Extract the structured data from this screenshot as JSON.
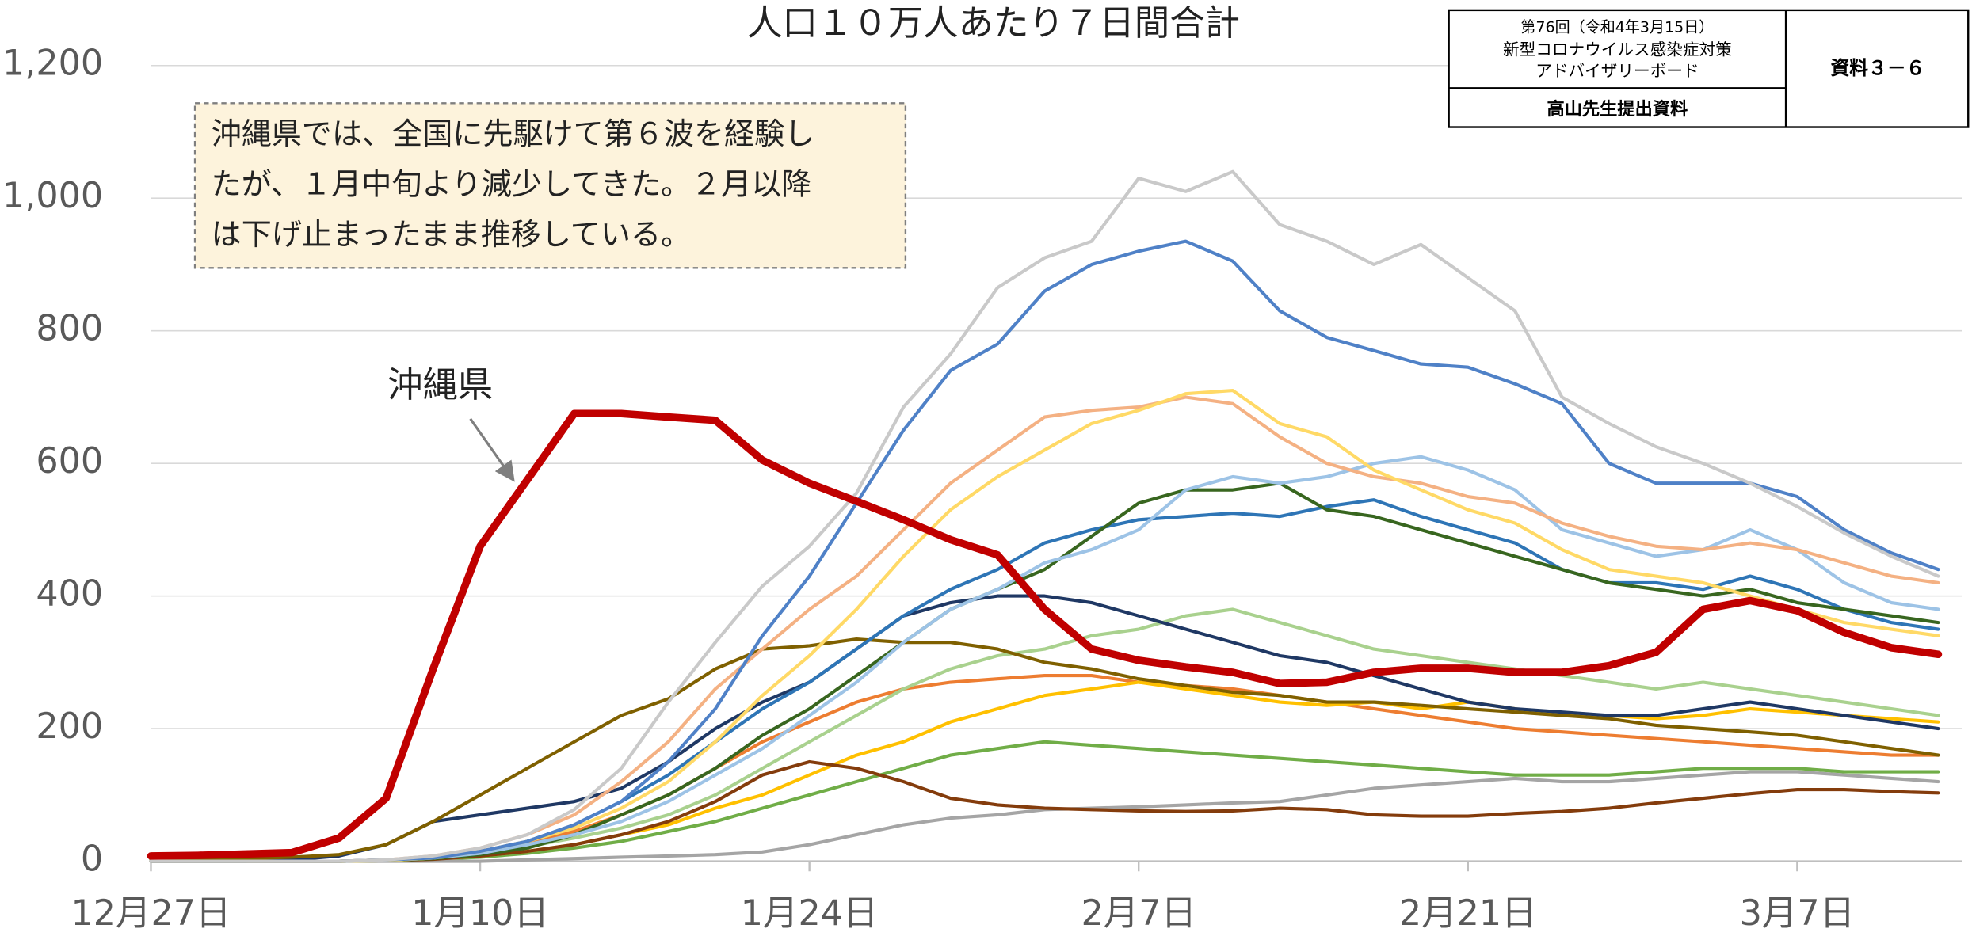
{
  "chart_data": {
    "type": "line",
    "title": "人口１０万人あたり７日間合計",
    "annotation": [
      "沖縄県では、全国に先駆けて第６波を経験し",
      "たが、１月中旬より減少してきた。２月以降",
      "は下げ止まったまま推移している。"
    ],
    "info_box": {
      "meeting": [
        "第76回（令和4年3月15日）",
        "新型コロナウイルス感染症対策",
        "アドバイザリーボード"
      ],
      "document": "資料３－６",
      "presenter": "高山先生提出資料"
    },
    "categories": [
      "12月27日",
      null,
      null,
      null,
      null,
      null,
      null,
      "1月10日",
      null,
      null,
      null,
      null,
      null,
      null,
      "1月24日",
      null,
      null,
      null,
      null,
      null,
      null,
      "2月7日",
      null,
      null,
      null,
      null,
      null,
      null,
      "2月21日",
      null,
      null,
      null,
      null,
      null,
      null,
      "3月7日",
      null,
      null,
      null
    ],
    "ylim": [
      0,
      1200
    ],
    "yticks": [
      0,
      200,
      400,
      600,
      800,
      {
        "value": 1000,
        "label": "1,000"
      },
      {
        "value": 1200,
        "label": "1,200"
      }
    ],
    "grid": true,
    "series": [
      {
        "name": "沖縄県",
        "color": "#c00000",
        "values": [
          8,
          9,
          11,
          13,
          35,
          95,
          290,
          475,
          575,
          675,
          675,
          670,
          665,
          605,
          570,
          543,
          515,
          485,
          462,
          380,
          320,
          303,
          293,
          285,
          268,
          270,
          285,
          291,
          291,
          285,
          285,
          295,
          315,
          380,
          393,
          378,
          345,
          322,
          312
        ]
      },
      {
        "color": "#c9c9c9",
        "values": [
          0,
          0,
          0,
          0,
          0,
          2,
          8,
          20,
          40,
          78,
          140,
          240,
          330,
          415,
          475,
          555,
          685,
          765,
          865,
          910,
          935,
          1030,
          1010,
          1040,
          960,
          935,
          900,
          930,
          880,
          830,
          700,
          660,
          625,
          600,
          570,
          535,
          495,
          460,
          430
        ]
      },
      {
        "color": "#4f81c7",
        "values": [
          0,
          0,
          0,
          0,
          0,
          2,
          5,
          15,
          30,
          55,
          90,
          150,
          230,
          340,
          430,
          540,
          650,
          740,
          780,
          860,
          900,
          920,
          935,
          905,
          830,
          790,
          770,
          750,
          745,
          720,
          690,
          600,
          570,
          570,
          570,
          550,
          500,
          465,
          440
        ]
      },
      {
        "color": "#ffd966",
        "values": [
          0,
          0,
          0,
          0,
          0,
          1,
          5,
          15,
          30,
          50,
          80,
          120,
          180,
          250,
          310,
          380,
          460,
          530,
          580,
          620,
          660,
          680,
          705,
          710,
          660,
          640,
          590,
          560,
          530,
          510,
          470,
          440,
          430,
          420,
          400,
          380,
          360,
          350,
          340
        ]
      },
      {
        "color": "#f4b183",
        "values": [
          0,
          0,
          0,
          0,
          0,
          2,
          8,
          20,
          40,
          70,
          120,
          180,
          260,
          320,
          380,
          430,
          500,
          570,
          620,
          670,
          680,
          685,
          700,
          690,
          640,
          600,
          580,
          570,
          550,
          540,
          510,
          490,
          475,
          470,
          480,
          470,
          450,
          430,
          420
        ]
      },
      {
        "color": "#9dc3e6",
        "values": [
          0,
          0,
          0,
          0,
          0,
          1,
          5,
          12,
          25,
          40,
          60,
          90,
          130,
          170,
          220,
          270,
          330,
          380,
          410,
          450,
          470,
          500,
          560,
          580,
          570,
          580,
          600,
          610,
          590,
          560,
          500,
          480,
          460,
          470,
          500,
          470,
          420,
          390,
          380
        ]
      },
      {
        "color": "#38661f",
        "values": [
          0,
          0,
          0,
          0,
          0,
          1,
          4,
          10,
          20,
          40,
          70,
          100,
          140,
          190,
          230,
          280,
          330,
          380,
          410,
          440,
          490,
          540,
          560,
          560,
          570,
          530,
          520,
          500,
          480,
          460,
          440,
          420,
          410,
          400,
          410,
          390,
          380,
          370,
          360
        ]
      },
      {
        "color": "#2e75b6",
        "values": [
          0,
          0,
          0,
          0,
          0,
          2,
          6,
          15,
          30,
          55,
          90,
          130,
          180,
          230,
          270,
          320,
          370,
          410,
          440,
          480,
          500,
          515,
          520,
          525,
          520,
          535,
          545,
          520,
          500,
          480,
          440,
          420,
          420,
          410,
          430,
          410,
          380,
          360,
          350
        ]
      },
      {
        "color": "#7f6000",
        "values": [
          2,
          3,
          4,
          6,
          10,
          25,
          60,
          100,
          140,
          180,
          220,
          245,
          290,
          320,
          325,
          335,
          330,
          330,
          320,
          300,
          290,
          275,
          265,
          255,
          250,
          240,
          240,
          235,
          230,
          225,
          220,
          215,
          205,
          200,
          195,
          190,
          180,
          170,
          160
        ]
      },
      {
        "color": "#1f3864",
        "values": [
          0,
          0,
          0,
          2,
          8,
          25,
          60,
          70,
          80,
          90,
          110,
          150,
          200,
          240,
          270,
          320,
          370,
          390,
          400,
          400,
          390,
          370,
          350,
          330,
          310,
          300,
          280,
          260,
          240,
          230,
          225,
          220,
          220,
          230,
          240,
          230,
          220,
          210,
          200
        ]
      },
      {
        "color": "#843c0c",
        "values": [
          0,
          0,
          0,
          0,
          0,
          1,
          3,
          8,
          15,
          25,
          40,
          60,
          90,
          130,
          150,
          140,
          120,
          95,
          85,
          80,
          78,
          76,
          75,
          76,
          80,
          78,
          70,
          68,
          68,
          72,
          75,
          80,
          88,
          95,
          102,
          108,
          108,
          105,
          103
        ]
      },
      {
        "color": "#a5a5a5",
        "values": [
          0,
          0,
          0,
          0,
          0,
          0,
          0,
          0,
          2,
          4,
          6,
          8,
          10,
          14,
          25,
          40,
          55,
          65,
          70,
          78,
          80,
          82,
          85,
          88,
          90,
          100,
          110,
          115,
          120,
          125,
          120,
          120,
          125,
          130,
          135,
          135,
          130,
          125,
          120
        ]
      },
      {
        "color": "#a9d18e",
        "values": [
          0,
          0,
          0,
          0,
          0,
          2,
          5,
          12,
          22,
          35,
          50,
          70,
          100,
          140,
          180,
          220,
          260,
          290,
          310,
          320,
          340,
          350,
          370,
          380,
          360,
          340,
          320,
          310,
          300,
          290,
          280,
          270,
          260,
          270,
          260,
          250,
          240,
          230,
          220
        ]
      },
      {
        "color": "#ffc000",
        "values": [
          0,
          0,
          0,
          0,
          0,
          1,
          3,
          8,
          15,
          25,
          40,
          55,
          80,
          100,
          130,
          160,
          180,
          210,
          230,
          250,
          260,
          270,
          260,
          250,
          240,
          235,
          240,
          230,
          240,
          230,
          220,
          220,
          215,
          220,
          230,
          225,
          220,
          215,
          210
        ]
      },
      {
        "color": "#ed7d31",
        "values": [
          0,
          0,
          0,
          0,
          0,
          2,
          6,
          15,
          28,
          45,
          70,
          100,
          140,
          180,
          210,
          240,
          260,
          270,
          275,
          280,
          280,
          270,
          265,
          260,
          250,
          240,
          230,
          220,
          210,
          200,
          195,
          190,
          185,
          180,
          175,
          170,
          165,
          160,
          160
        ]
      },
      {
        "color": "#70ad47",
        "values": [
          0,
          0,
          0,
          0,
          0,
          1,
          3,
          6,
          12,
          20,
          30,
          45,
          60,
          80,
          100,
          120,
          140,
          160,
          170,
          180,
          175,
          170,
          165,
          160,
          155,
          150,
          145,
          140,
          135,
          130,
          130,
          130,
          135,
          140,
          140,
          140,
          135,
          135,
          135
        ]
      }
    ]
  }
}
